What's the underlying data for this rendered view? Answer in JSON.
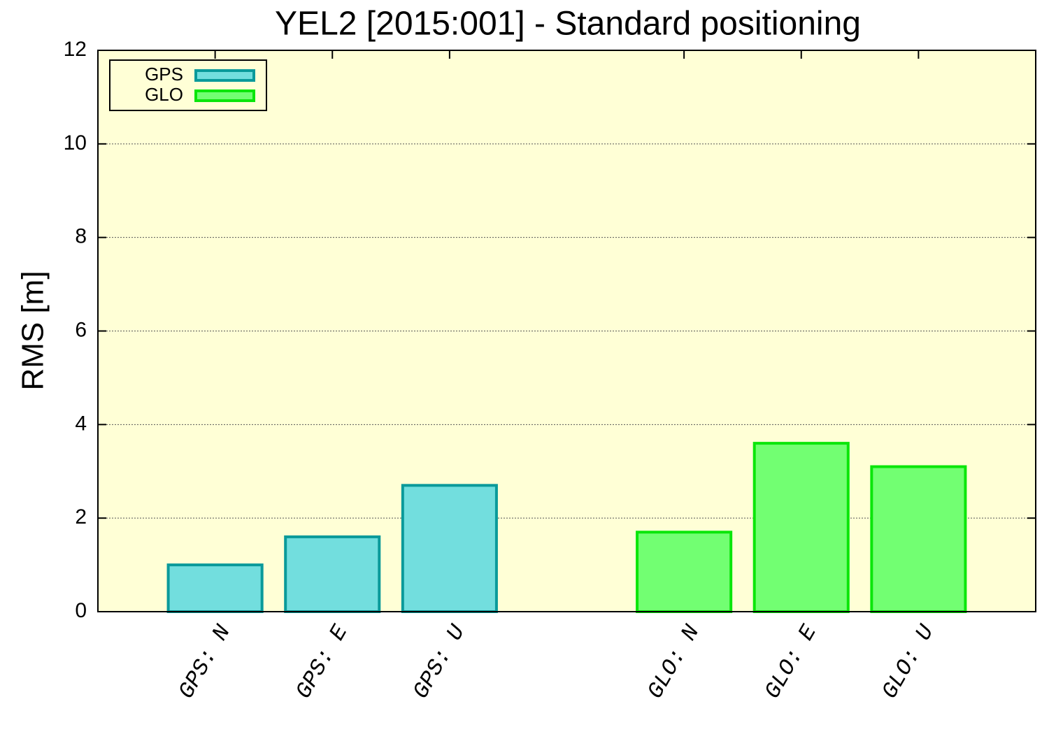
{
  "chart_data": {
    "type": "bar",
    "title": "YEL2 [2015:001] - Standard positioning",
    "y_label": "RMS [m]",
    "categories": [
      "GPS: N",
      "GPS: E",
      "GPS: U",
      null,
      "GLO: N",
      "GLO: E",
      "GLO: U"
    ],
    "series": [
      {
        "name": "GPS",
        "color": "#72dede",
        "edgecolor": "#0a9a9a",
        "values": [
          1.0,
          1.6,
          2.7,
          null,
          null,
          null,
          null
        ]
      },
      {
        "name": "GLO",
        "color": "#72ff72",
        "edgecolor": "#0ae60a",
        "values": [
          null,
          null,
          null,
          null,
          1.7,
          3.6,
          3.1
        ]
      }
    ],
    "ylim": [
      0,
      12
    ],
    "yticks": [
      0,
      2,
      4,
      6,
      8,
      10,
      12
    ],
    "grid": true,
    "legend": "upper left",
    "background": "#ffffd6"
  }
}
